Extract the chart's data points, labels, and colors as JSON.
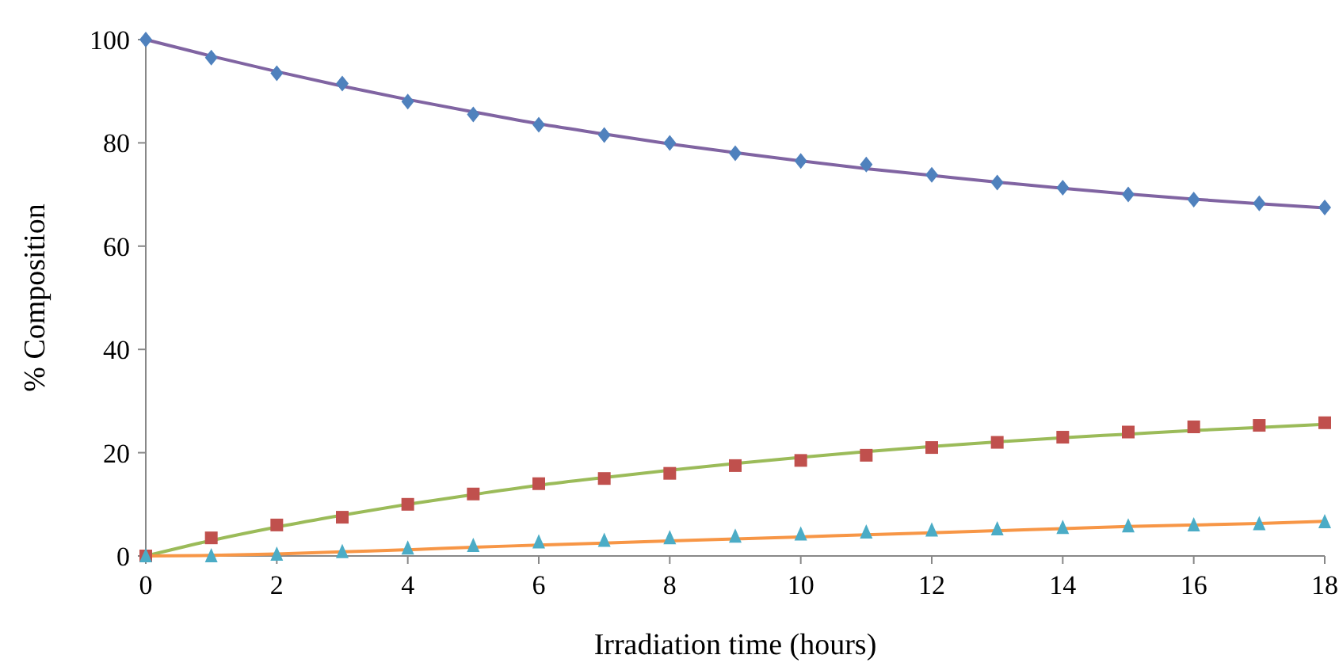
{
  "chart_data": {
    "type": "line",
    "xlabel": "Irradiation time (hours)",
    "ylabel": "% Composition",
    "x": [
      0,
      1,
      2,
      3,
      4,
      5,
      6,
      7,
      8,
      9,
      10,
      11,
      12,
      13,
      14,
      15,
      16,
      17,
      18
    ],
    "xlim": [
      0,
      18
    ],
    "xticks": [
      0,
      2,
      4,
      6,
      8,
      10,
      12,
      14,
      16,
      18
    ],
    "ylim": [
      0,
      100
    ],
    "yticks": [
      0,
      20,
      40,
      60,
      80,
      100
    ],
    "grid": false,
    "series": [
      {
        "marker": "none",
        "color": "#8064a2",
        "values": [
          100,
          96.8,
          93.8,
          91,
          88.4,
          86,
          83.7,
          81.7,
          79.8,
          78.1,
          76.5,
          75,
          73.7,
          72.4,
          71.2,
          70.1,
          69.1,
          68.2,
          67.4
        ]
      },
      {
        "marker": "none",
        "color": "#9bbb59",
        "values": [
          0,
          3,
          5.6,
          7.9,
          10,
          11.9,
          13.7,
          15.2,
          16.6,
          17.9,
          19.1,
          20.2,
          21.2,
          22.1,
          22.9,
          23.6,
          24.3,
          24.9,
          25.5
        ]
      },
      {
        "marker": "none",
        "color": "#f79646",
        "values": [
          0,
          0.1,
          0.4,
          0.8,
          1.2,
          1.7,
          2.1,
          2.5,
          2.9,
          3.3,
          3.7,
          4.1,
          4.5,
          4.9,
          5.3,
          5.7,
          6,
          6.3,
          6.7
        ]
      },
      {
        "type": "scatter",
        "marker": "diamond",
        "color": "#4f81bd",
        "values": [
          100,
          96.5,
          93.5,
          91.5,
          88,
          85.5,
          83.5,
          81.5,
          80,
          78,
          76.5,
          75.8,
          73.8,
          72.3,
          71.3,
          70,
          69,
          68.3,
          67.5
        ]
      },
      {
        "type": "scatter",
        "marker": "square",
        "color": "#c0504d",
        "values": [
          0,
          3.5,
          6,
          7.5,
          10,
          12,
          14,
          15,
          16,
          17.5,
          18.5,
          19.5,
          21,
          22,
          23,
          24,
          25,
          25.3,
          25.8
        ]
      },
      {
        "type": "scatter",
        "marker": "triangle",
        "color": "#4bacc6",
        "values": [
          0,
          0,
          0.3,
          0.8,
          1.5,
          2,
          2.7,
          3,
          3.5,
          3.8,
          4.2,
          4.6,
          5,
          5.2,
          5.5,
          5.8,
          6,
          6.2,
          6.6
        ]
      }
    ]
  }
}
